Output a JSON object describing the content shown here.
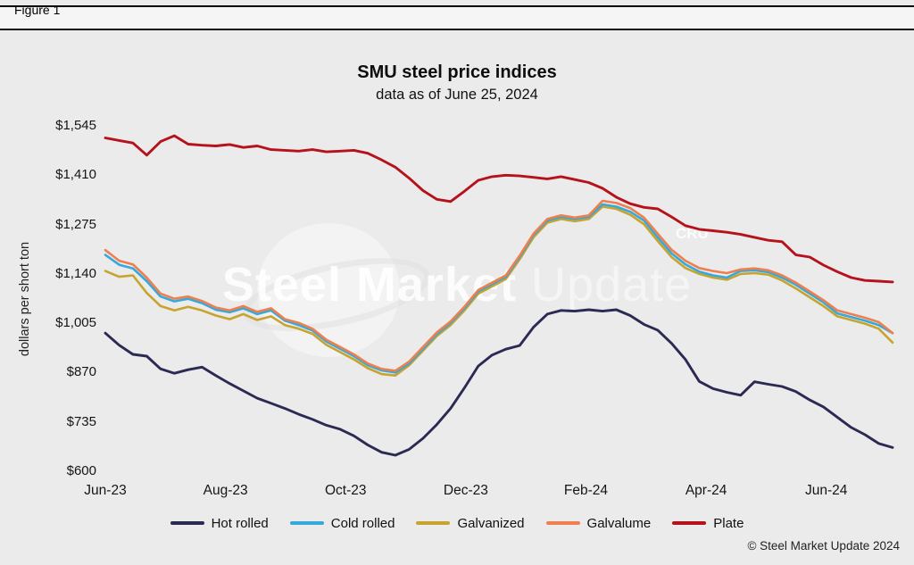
{
  "figure_label": "Figure 1",
  "title": "SMU steel price indices",
  "subtitle": "data as of June 25, 2024",
  "ylabel": "dollars per short ton",
  "copyright": "© Steel Market Update 2024",
  "watermark": {
    "text_primary": "Steel Market",
    "text_secondary": "Update",
    "corner_logo": "CRU"
  },
  "chart_data": {
    "type": "line",
    "title": "SMU steel price indices",
    "subtitle": "data as of June 25, 2024",
    "xlabel": "",
    "ylabel": "dollars per short ton",
    "ylim": [
      600,
      1545
    ],
    "grid": false,
    "legend_position": "bottom",
    "x_unit": "weekly observations, Jun-2023 through late Jun-2024",
    "x_ticks": [
      {
        "label": "Jun-23",
        "week": 0
      },
      {
        "label": "Aug-23",
        "week": 8.7
      },
      {
        "label": "Oct-23",
        "week": 17.4
      },
      {
        "label": "Dec-23",
        "week": 26.1
      },
      {
        "label": "Feb-24",
        "week": 34.8
      },
      {
        "label": "Apr-24",
        "week": 43.5
      },
      {
        "label": "Jun-24",
        "week": 52.2
      }
    ],
    "y_ticks": [
      {
        "label": "$600",
        "value": 600
      },
      {
        "label": "$735",
        "value": 735
      },
      {
        "label": "$870",
        "value": 870
      },
      {
        "label": "$1,005",
        "value": 1005
      },
      {
        "label": "$1,140",
        "value": 1140
      },
      {
        "label": "$1,275",
        "value": 1275
      },
      {
        "label": "$1,410",
        "value": 1410
      },
      {
        "label": "$1,545",
        "value": 1545
      }
    ],
    "series": [
      {
        "name": "Hot rolled",
        "color": "#2b2a52",
        "values": [
          978,
          945,
          920,
          915,
          880,
          868,
          878,
          885,
          862,
          840,
          820,
          800,
          786,
          772,
          756,
          742,
          726,
          715,
          697,
          672,
          652,
          644,
          660,
          690,
          728,
          772,
          828,
          888,
          918,
          934,
          944,
          994,
          1030,
          1040,
          1038,
          1042,
          1038,
          1042,
          1026,
          1002,
          986,
          950,
          906,
          846,
          826,
          816,
          808,
          845,
          838,
          832,
          818,
          795,
          776,
          748,
          720,
          700,
          676,
          665
        ]
      },
      {
        "name": "Cold rolled",
        "color": "#35a8dc",
        "values": [
          1192,
          1165,
          1155,
          1120,
          1078,
          1065,
          1072,
          1060,
          1042,
          1035,
          1046,
          1030,
          1040,
          1012,
          1000,
          985,
          955,
          935,
          915,
          890,
          876,
          870,
          895,
          935,
          975,
          1006,
          1046,
          1092,
          1112,
          1132,
          1186,
          1246,
          1286,
          1296,
          1290,
          1296,
          1330,
          1324,
          1310,
          1286,
          1240,
          1196,
          1166,
          1146,
          1136,
          1130,
          1148,
          1150,
          1145,
          1130,
          1110,
          1086,
          1062,
          1032,
          1022,
          1012,
          1000,
          978
        ]
      },
      {
        "name": "Galvanized",
        "color": "#c7a42f",
        "values": [
          1148,
          1132,
          1136,
          1088,
          1052,
          1040,
          1050,
          1040,
          1026,
          1016,
          1030,
          1014,
          1024,
          1000,
          990,
          976,
          946,
          926,
          906,
          882,
          866,
          862,
          890,
          930,
          970,
          1000,
          1040,
          1086,
          1106,
          1126,
          1180,
          1240,
          1280,
          1290,
          1284,
          1290,
          1324,
          1318,
          1302,
          1276,
          1230,
          1186,
          1156,
          1140,
          1130,
          1124,
          1140,
          1142,
          1138,
          1122,
          1100,
          1076,
          1052,
          1024,
          1014,
          1004,
          990,
          952
        ]
      },
      {
        "name": "Galvalume",
        "color": "#ee7f4e",
        "values": [
          1205,
          1176,
          1166,
          1130,
          1086,
          1072,
          1078,
          1066,
          1048,
          1040,
          1052,
          1036,
          1046,
          1016,
          1006,
          990,
          960,
          940,
          920,
          895,
          880,
          875,
          900,
          940,
          980,
          1010,
          1050,
          1096,
          1116,
          1136,
          1190,
          1250,
          1290,
          1300,
          1294,
          1300,
          1340,
          1334,
          1320,
          1294,
          1250,
          1206,
          1176,
          1156,
          1148,
          1142,
          1152,
          1155,
          1150,
          1136,
          1116,
          1092,
          1068,
          1040,
          1030,
          1020,
          1008,
          978
        ]
      },
      {
        "name": "Plate",
        "color": "#b5121b",
        "values": [
          1512,
          1505,
          1498,
          1465,
          1502,
          1518,
          1495,
          1492,
          1490,
          1494,
          1486,
          1490,
          1480,
          1478,
          1476,
          1480,
          1474,
          1476,
          1478,
          1470,
          1452,
          1432,
          1402,
          1368,
          1344,
          1338,
          1366,
          1396,
          1406,
          1410,
          1408,
          1404,
          1400,
          1406,
          1398,
          1390,
          1374,
          1350,
          1332,
          1322,
          1318,
          1296,
          1272,
          1262,
          1258,
          1254,
          1248,
          1240,
          1232,
          1228,
          1192,
          1186,
          1164,
          1146,
          1130,
          1122,
          1120,
          1118
        ]
      }
    ]
  }
}
